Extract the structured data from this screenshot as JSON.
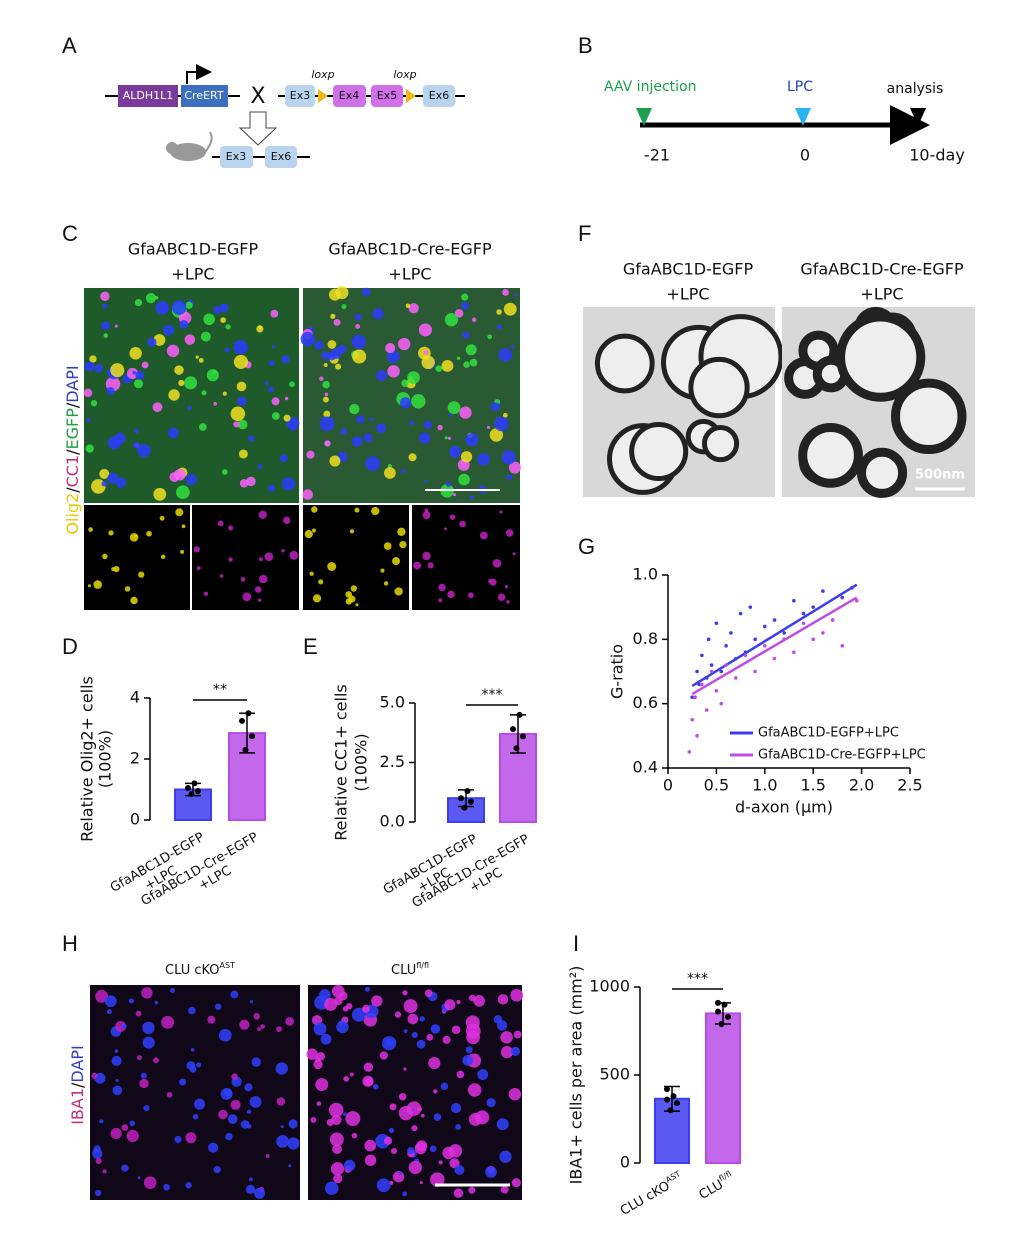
{
  "panel_labels": [
    "A",
    "B",
    "C",
    "D",
    "E",
    "F",
    "G",
    "H",
    "I"
  ],
  "panel_a": {
    "gene": "ALDH1L1",
    "driver": "CreERT",
    "cross": "X",
    "exons": [
      "Ex3",
      "Ex4",
      "Ex5",
      "Ex6"
    ],
    "loxp": [
      "loxp",
      "loxp"
    ],
    "result_exons": [
      "Ex3",
      "Ex6"
    ]
  },
  "panel_b": {
    "events": [
      "AAV injection",
      "LPC",
      "analysis"
    ],
    "times": [
      "-21",
      "0",
      "10-day"
    ]
  },
  "panel_c": {
    "headers": [
      [
        "GfaABC1D-EGFP",
        "+LPC"
      ],
      [
        "GfaABC1D-Cre-EGFP",
        "+LPC"
      ]
    ],
    "stain": [
      "Olig2",
      "/",
      "CC1",
      "/",
      "EGFP",
      "/",
      "DAPI"
    ]
  },
  "panel_f": {
    "headers": [
      [
        "GfaABC1D-EGFP",
        "+LPC"
      ],
      [
        "GfaABC1D-Cre-EGFP",
        "+LPC"
      ]
    ],
    "scale": "500nm"
  },
  "panel_h": {
    "headers": [
      [
        "CLU cKO",
        "AST"
      ],
      [
        "CLU",
        "fl/fl"
      ]
    ],
    "stain": [
      "IBA1",
      "/",
      "DAPI"
    ]
  },
  "chart_data": [
    {
      "type": "bar",
      "categories": [
        "GfaABC1D-EGFP",
        "GfaABC1D-Cre-EGFP"
      ],
      "category_line2": [
        "+LPC",
        "+LPC"
      ],
      "values": [
        1.0,
        2.85
      ],
      "errors": [
        0.2,
        0.65
      ],
      "points": [
        [
          0.85,
          0.95,
          1.05,
          1.2
        ],
        [
          2.3,
          2.75,
          3.25,
          3.5
        ]
      ],
      "colors": [
        "#3d3df0",
        "#b84ce8"
      ],
      "ylabel": [
        "Relative Olig2+ cells",
        "(100%)"
      ],
      "ylim": [
        0,
        4
      ],
      "yticks": [
        0,
        2,
        4
      ],
      "significance": "**"
    },
    {
      "type": "bar",
      "categories": [
        "GfaABC1D-EGFP",
        "GfaABC1D-Cre-EGFP"
      ],
      "category_line2": [
        "+LPC",
        "+LPC"
      ],
      "values": [
        1.0,
        3.7
      ],
      "errors": [
        0.35,
        0.8
      ],
      "points": [
        [
          0.6,
          0.85,
          1.0,
          1.3
        ],
        [
          3.1,
          3.6,
          3.9,
          4.5
        ]
      ],
      "colors": [
        "#3d3df0",
        "#b84ce8"
      ],
      "ylabel": [
        "Relative CC1+ cells",
        "(100%)"
      ],
      "ylim": [
        0,
        5
      ],
      "yticks": [
        {
          "value": 0,
          "label": "0.0"
        },
        2.5,
        {
          "value": 5,
          "label": "5.0"
        }
      ],
      "significance": "***"
    },
    {
      "type": "scatter",
      "xlabel": "d-axon (μm)",
      "ylabel": "G-ratio",
      "xlim": [
        0,
        2.5
      ],
      "ylim": [
        0.4,
        1.0
      ],
      "xticks": [
        0,
        0.5,
        {
          "value": 1,
          "label": "1.0"
        },
        1.5,
        {
          "value": 2,
          "label": "2.0"
        },
        2.5
      ],
      "yticks": [
        0.4,
        0.6,
        0.8,
        {
          "value": 1,
          "label": "1.0"
        }
      ],
      "series": [
        {
          "name": "GfaABC1D-EGFP+LPC",
          "color": "#3d3df0",
          "x": [
            0.25,
            0.3,
            0.32,
            0.35,
            0.4,
            0.42,
            0.45,
            0.5,
            0.55,
            0.6,
            0.65,
            0.7,
            0.75,
            0.8,
            0.85,
            0.9,
            1.0,
            1.1,
            1.2,
            1.3,
            1.4,
            1.5,
            1.6,
            1.7,
            1.8,
            1.9
          ],
          "values": [
            0.62,
            0.7,
            0.66,
            0.75,
            0.68,
            0.8,
            0.72,
            0.85,
            0.7,
            0.78,
            0.82,
            0.74,
            0.88,
            0.76,
            0.9,
            0.8,
            0.84,
            0.86,
            0.82,
            0.92,
            0.88,
            0.9,
            0.95,
            0.86,
            0.93,
            0.96
          ],
          "fit_x": [
            0.25,
            1.95
          ],
          "fit_y": [
            0.655,
            0.97
          ]
        },
        {
          "name": "GfaABC1D-Cre-EGFP+LPC",
          "color": "#c04ce8",
          "x": [
            0.22,
            0.25,
            0.28,
            0.3,
            0.35,
            0.4,
            0.45,
            0.5,
            0.55,
            0.6,
            0.7,
            0.8,
            0.9,
            1.0,
            1.1,
            1.2,
            1.3,
            1.4,
            1.5,
            1.6,
            1.7,
            1.8,
            1.95
          ],
          "values": [
            0.45,
            0.55,
            0.62,
            0.5,
            0.66,
            0.58,
            0.7,
            0.64,
            0.6,
            0.72,
            0.68,
            0.75,
            0.7,
            0.78,
            0.74,
            0.8,
            0.76,
            0.85,
            0.8,
            0.82,
            0.86,
            0.78,
            0.92
          ],
          "fit_x": [
            0.25,
            1.95
          ],
          "fit_y": [
            0.63,
            0.93
          ]
        }
      ]
    },
    {
      "type": "bar",
      "categories": [
        "CLU cKO",
        "CLU"
      ],
      "category_sup": [
        "AST",
        "fl/fl"
      ],
      "values": [
        365,
        850
      ],
      "errors": [
        70,
        60
      ],
      "points": [
        [
          300,
          340,
          360,
          380,
          420
        ],
        [
          790,
          830,
          860,
          900,
          910
        ]
      ],
      "colors": [
        "#3d3df0",
        "#b84ce8"
      ],
      "ylabel": [
        "IBA1+ cells per area (mm²)"
      ],
      "ylim": [
        0,
        1000
      ],
      "yticks": [
        0,
        500,
        1000
      ],
      "significance": "***"
    }
  ]
}
